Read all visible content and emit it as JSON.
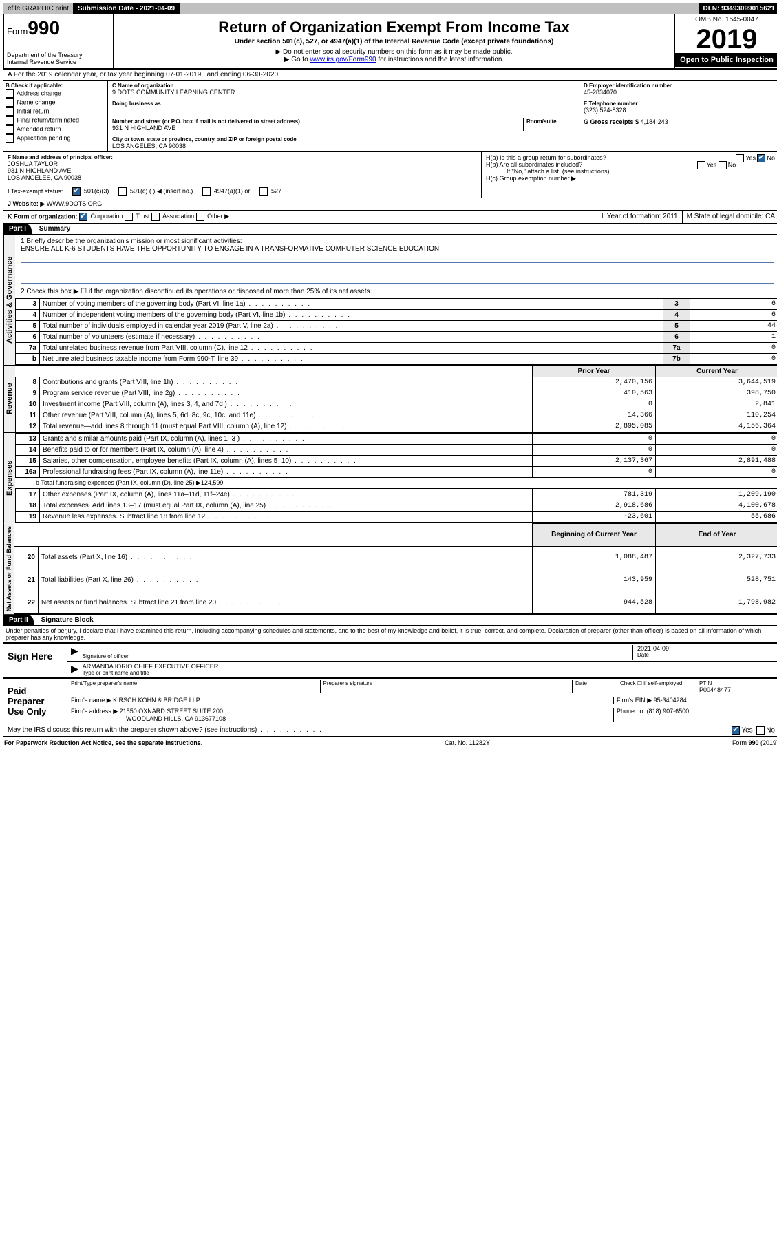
{
  "topbar": {
    "efile": "efile GRAPHIC print",
    "submission_label": "Submission Date - 2021-04-09",
    "dln": "DLN: 93493099015621"
  },
  "header": {
    "form_prefix": "Form",
    "form_number": "990",
    "dept": "Department of the Treasury",
    "irs": "Internal Revenue Service",
    "title": "Return of Organization Exempt From Income Tax",
    "subtitle": "Under section 501(c), 527, or 4947(a)(1) of the Internal Revenue Code (except private foundations)",
    "note1": "▶ Do not enter social security numbers on this form as it may be made public.",
    "note2_pre": "▶ Go to ",
    "note2_link": "www.irs.gov/Form990",
    "note2_post": " for instructions and the latest information.",
    "omb": "OMB No. 1545-0047",
    "year": "2019",
    "open": "Open to Public Inspection"
  },
  "sectionA": "A For the 2019 calendar year, or tax year beginning 07-01-2019    , and ending 06-30-2020",
  "boxB": {
    "label": "B Check if applicable:",
    "items": [
      "Address change",
      "Name change",
      "Initial return",
      "Final return/terminated",
      "Amended return",
      "Application pending"
    ]
  },
  "boxC": {
    "name_label": "C Name of organization",
    "name": "9 DOTS COMMUNITY LEARNING CENTER",
    "dba_label": "Doing business as",
    "addr_label": "Number and street (or P.O. box if mail is not delivered to street address)",
    "room_label": "Room/suite",
    "addr": "931 N HIGHLAND AVE",
    "city_label": "City or town, state or province, country, and ZIP or foreign postal code",
    "city": "LOS ANGELES, CA  90038"
  },
  "boxD": {
    "label": "D Employer identification number",
    "val": "45-2834070"
  },
  "boxE": {
    "label": "E Telephone number",
    "val": "(323) 524-8328"
  },
  "boxG": {
    "label": "G Gross receipts $",
    "val": "4,184,243"
  },
  "boxF": {
    "label": "F Name and address of principal officer:",
    "name": "JOSHUA TAYLOR",
    "addr1": "931 N HIGHLAND AVE",
    "addr2": "LOS ANGELES, CA  90038"
  },
  "boxH": {
    "a": "H(a)  Is this a group return for subordinates?",
    "b": "H(b)  Are all subordinates included?",
    "b_note": "If \"No,\" attach a list. (see instructions)",
    "c": "H(c)  Group exemption number ▶",
    "yes": "Yes",
    "no": "No"
  },
  "boxI": {
    "label": "I   Tax-exempt status:",
    "opt1": "501(c)(3)",
    "opt2": "501(c) (  ) ◀ (insert no.)",
    "opt3": "4947(a)(1) or",
    "opt4": "527"
  },
  "boxJ": {
    "label": "J   Website: ▶",
    "val": "WWW.9DOTS.ORG"
  },
  "boxK": {
    "label": "K Form of organization:",
    "opts": [
      "Corporation",
      "Trust",
      "Association",
      "Other ▶"
    ],
    "L": "L Year of formation: 2011",
    "M": "M State of legal domicile: CA"
  },
  "part1": {
    "tab": "Part I",
    "title": "Summary",
    "line1_label": "1  Briefly describe the organization's mission or most significant activities:",
    "line1_val": "ENSURE ALL K-6 STUDENTS HAVE THE OPPORTUNITY TO ENGAGE IN A TRANSFORMATIVE COMPUTER SCIENCE EDUCATION.",
    "line2": "2   Check this box ▶ ☐  if the organization discontinued its operations or disposed of more than 25% of its net assets.",
    "side_gov": "Activities & Governance",
    "side_rev": "Revenue",
    "side_exp": "Expenses",
    "side_net": "Net Assets or Fund Balances",
    "gov_rows": [
      {
        "n": "3",
        "t": "Number of voting members of the governing body (Part VI, line 1a)",
        "box": "3",
        "v": "6"
      },
      {
        "n": "4",
        "t": "Number of independent voting members of the governing body (Part VI, line 1b)",
        "box": "4",
        "v": "6"
      },
      {
        "n": "5",
        "t": "Total number of individuals employed in calendar year 2019 (Part V, line 2a)",
        "box": "5",
        "v": "44"
      },
      {
        "n": "6",
        "t": "Total number of volunteers (estimate if necessary)",
        "box": "6",
        "v": "1"
      },
      {
        "n": "7a",
        "t": "Total unrelated business revenue from Part VIII, column (C), line 12",
        "box": "7a",
        "v": "0"
      },
      {
        "n": "b",
        "t": "Net unrelated business taxable income from Form 990-T, line 39",
        "box": "7b",
        "v": "0"
      }
    ],
    "col_prior": "Prior Year",
    "col_current": "Current Year",
    "col_begin": "Beginning of Current Year",
    "col_end": "End of Year",
    "rev_rows": [
      {
        "n": "8",
        "t": "Contributions and grants (Part VIII, line 1h)",
        "p": "2,470,156",
        "c": "3,644,519"
      },
      {
        "n": "9",
        "t": "Program service revenue (Part VIII, line 2g)",
        "p": "410,563",
        "c": "398,750"
      },
      {
        "n": "10",
        "t": "Investment income (Part VIII, column (A), lines 3, 4, and 7d )",
        "p": "0",
        "c": "2,841"
      },
      {
        "n": "11",
        "t": "Other revenue (Part VIII, column (A), lines 5, 6d, 8c, 9c, 10c, and 11e)",
        "p": "14,366",
        "c": "110,254"
      },
      {
        "n": "12",
        "t": "Total revenue—add lines 8 through 11 (must equal Part VIII, column (A), line 12)",
        "p": "2,895,085",
        "c": "4,156,364"
      }
    ],
    "exp_rows": [
      {
        "n": "13",
        "t": "Grants and similar amounts paid (Part IX, column (A), lines 1–3 )",
        "p": "0",
        "c": "0"
      },
      {
        "n": "14",
        "t": "Benefits paid to or for members (Part IX, column (A), line 4)",
        "p": "0",
        "c": "0"
      },
      {
        "n": "15",
        "t": "Salaries, other compensation, employee benefits (Part IX, column (A), lines 5–10)",
        "p": "2,137,367",
        "c": "2,891,488"
      },
      {
        "n": "16a",
        "t": "Professional fundraising fees (Part IX, column (A), line 11e)",
        "p": "0",
        "c": "0"
      }
    ],
    "exp_b": "b  Total fundraising expenses (Part IX, column (D), line 25) ▶124,599",
    "exp_rows2": [
      {
        "n": "17",
        "t": "Other expenses (Part IX, column (A), lines 11a–11d, 11f–24e)",
        "p": "781,319",
        "c": "1,209,190"
      },
      {
        "n": "18",
        "t": "Total expenses. Add lines 13–17 (must equal Part IX, column (A), line 25)",
        "p": "2,918,686",
        "c": "4,100,678"
      },
      {
        "n": "19",
        "t": "Revenue less expenses. Subtract line 18 from line 12",
        "p": "-23,601",
        "c": "55,686"
      }
    ],
    "net_rows": [
      {
        "n": "20",
        "t": "Total assets (Part X, line 16)",
        "p": "1,088,487",
        "c": "2,327,733"
      },
      {
        "n": "21",
        "t": "Total liabilities (Part X, line 26)",
        "p": "143,959",
        "c": "528,751"
      },
      {
        "n": "22",
        "t": "Net assets or fund balances. Subtract line 21 from line 20",
        "p": "944,528",
        "c": "1,798,982"
      }
    ]
  },
  "part2": {
    "tab": "Part II",
    "title": "Signature Block",
    "perjury": "Under penalties of perjury, I declare that I have examined this return, including accompanying schedules and statements, and to the best of my knowledge and belief, it is true, correct, and complete. Declaration of preparer (other than officer) is based on all information of which preparer has any knowledge.",
    "sign_here": "Sign Here",
    "sig_officer": "Signature of officer",
    "sig_date": "2021-04-09",
    "date_lbl": "Date",
    "officer_name": "ARMANDA IORIO  CHIEF EXECUTIVE OFFICER",
    "type_name": "Type or print name and title",
    "paid": "Paid Preparer Use Only",
    "prep_name_lbl": "Print/Type preparer's name",
    "prep_sig_lbl": "Preparer's signature",
    "check_self": "Check ☐ if self-employed",
    "ptin_lbl": "PTIN",
    "ptin": "P00448477",
    "firm_name_lbl": "Firm's name    ▶",
    "firm_name": "KIRSCH KOHN & BRIDGE LLP",
    "firm_ein_lbl": "Firm's EIN ▶",
    "firm_ein": "95-3404284",
    "firm_addr_lbl": "Firm's address ▶",
    "firm_addr1": "21550 OXNARD STREET SUITE 200",
    "firm_addr2": "WOODLAND HILLS, CA  913677108",
    "phone_lbl": "Phone no.",
    "phone": "(818) 907-6500",
    "discuss": "May the IRS discuss this return with the preparer shown above? (see instructions)",
    "yes": "Yes",
    "no": "No"
  },
  "footer": {
    "left": "For Paperwork Reduction Act Notice, see the separate instructions.",
    "mid": "Cat. No. 11282Y",
    "right": "Form 990 (2019)"
  }
}
